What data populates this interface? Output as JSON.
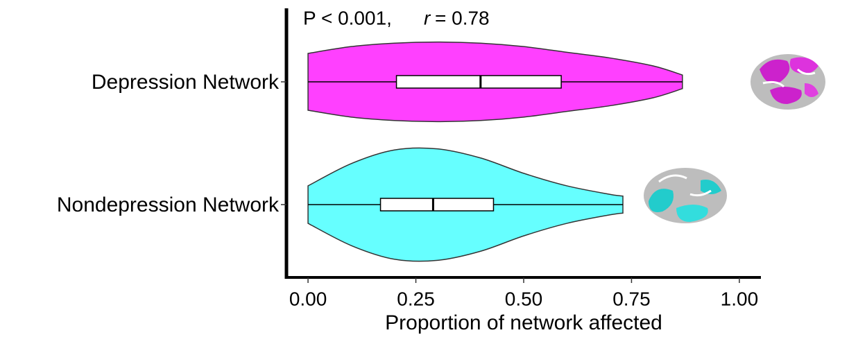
{
  "chart_data": {
    "type": "violin",
    "annotation": {
      "p": "P < 0.001,",
      "r_symbol": "r",
      "r_value": "= 0.78"
    },
    "xlabel": "Proportion of network affected",
    "categories": [
      "Depression Network",
      "Nondepression Network"
    ],
    "xlim": [
      -0.05,
      1.05
    ],
    "xticks": [
      {
        "value": 0,
        "label": "0.00"
      },
      {
        "value": 0.25,
        "label": "0.25"
      },
      {
        "value": 0.5,
        "label": "0.50"
      },
      {
        "value": 0.75,
        "label": "0.75"
      },
      {
        "value": 1,
        "label": "1.00"
      }
    ],
    "series": [
      {
        "color": "#ff40ff",
        "min": 0,
        "q1": 0.205,
        "median": 0.4,
        "q3": 0.587,
        "max": 0.868,
        "density_x": [
          0,
          0.1,
          0.2,
          0.3,
          0.4,
          0.5,
          0.6,
          0.7,
          0.8,
          0.868
        ],
        "density": [
          0.5,
          0.62,
          0.68,
          0.7,
          0.68,
          0.62,
          0.52,
          0.42,
          0.28,
          0.12
        ]
      },
      {
        "color": "#66ffff",
        "min": 0,
        "q1": 0.168,
        "median": 0.29,
        "q3": 0.43,
        "max": 0.73,
        "density_x": [
          0,
          0.1,
          0.2,
          0.3,
          0.4,
          0.5,
          0.6,
          0.7,
          0.73
        ],
        "density": [
          0.33,
          0.72,
          0.96,
          0.98,
          0.82,
          0.55,
          0.33,
          0.18,
          0.15
        ]
      }
    ]
  }
}
